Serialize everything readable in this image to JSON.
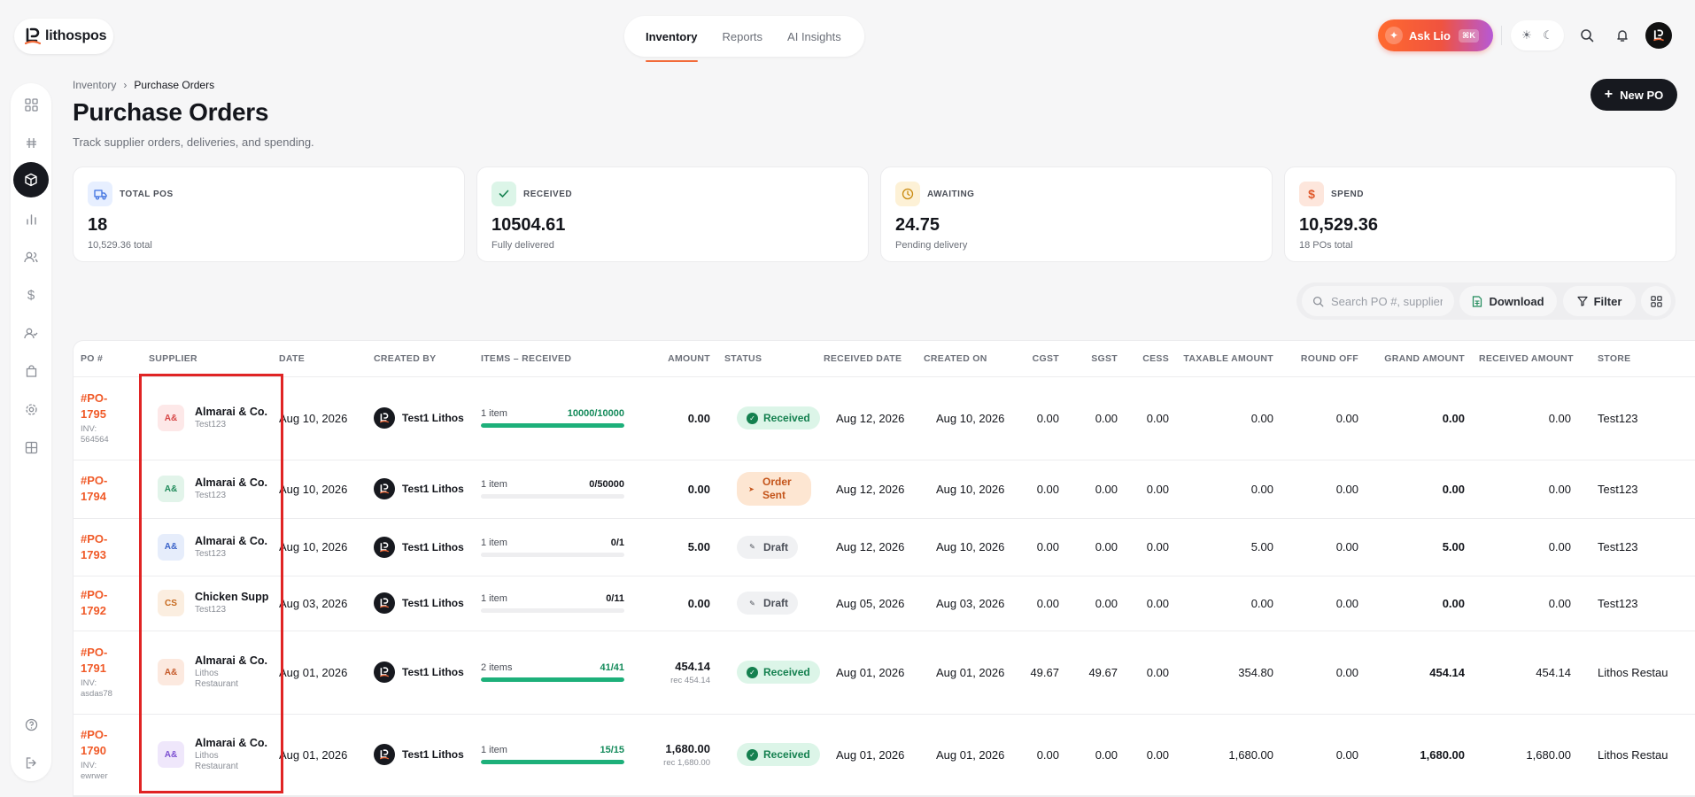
{
  "app": {
    "logo_text": "lithospos"
  },
  "topnav": {
    "tabs": [
      {
        "label": "Inventory",
        "active": true
      },
      {
        "label": "Reports",
        "active": false
      },
      {
        "label": "AI Insights",
        "active": false
      }
    ]
  },
  "topbar": {
    "ask_label": "Ask Lio",
    "ask_shortcut": "⌘K"
  },
  "breadcrumb": {
    "parent": "Inventory",
    "current": "Purchase Orders"
  },
  "page": {
    "title": "Purchase Orders",
    "subtitle": "Track supplier orders, deliveries, and spending.",
    "new_button": "New PO"
  },
  "stats": [
    {
      "label": "TOTAL POS",
      "value": "18",
      "sub": "10,529.36 total",
      "icon": "truck-icon",
      "color": "#3b6fe0",
      "bg": "#e7efff"
    },
    {
      "label": "RECEIVED",
      "value": "10504.61",
      "sub": "Fully delivered",
      "icon": "check-icon",
      "color": "#14804f",
      "bg": "#dcf5e8"
    },
    {
      "label": "AWAITING",
      "value": "24.75",
      "sub": "Pending delivery",
      "icon": "clock-icon",
      "color": "#c98a10",
      "bg": "#fdf1d6"
    },
    {
      "label": "SPEND",
      "value": "10,529.36",
      "sub": "18 POs total",
      "icon": "dollar-icon",
      "color": "#e0582a",
      "bg": "#fde6dc"
    }
  ],
  "toolbar": {
    "search_placeholder": "Search PO #, supplier...",
    "download_label": "Download",
    "filter_label": "Filter"
  },
  "table": {
    "columns": [
      "PO #",
      "SUPPLIER",
      "DATE",
      "CREATED BY",
      "ITEMS – RECEIVED",
      "AMOUNT",
      "STATUS",
      "RECEIVED DATE",
      "CREATED ON",
      "CGST",
      "SGST",
      "CESS",
      "TAXABLE AMOUNT",
      "ROUND OFF",
      "GRAND AMOUNT",
      "RECEIVED AMOUNT",
      "STORE"
    ],
    "rows": [
      {
        "po": "#PO-1795",
        "inv": "INV: 564564",
        "sup_badge": "A&",
        "badge_color": "#d64545",
        "badge_bg": "#fde8e8",
        "supplier": "Almarai & Co.",
        "sup_loc": "Test123",
        "date": "Aug 10, 2026",
        "created_by": "Test1 Lithos",
        "items": "1 item",
        "received": "10000/10000",
        "progress": 1.0,
        "amount": "0.00",
        "amount_sub": "",
        "status": "Received",
        "status_type": "received",
        "received_date": "Aug 12, 2026",
        "created_on": "Aug 10, 2026",
        "cgst": "0.00",
        "sgst": "0.00",
        "cess": "0.00",
        "taxable": "0.00",
        "round_off": "0.00",
        "grand": "0.00",
        "received_amount": "0.00",
        "store": "Test123"
      },
      {
        "po": "#PO-1794",
        "inv": "",
        "sup_badge": "A&",
        "badge_color": "#1f8a5a",
        "badge_bg": "#e2f4ea",
        "supplier": "Almarai & Co.",
        "sup_loc": "Test123",
        "date": "Aug 10, 2026",
        "created_by": "Test1 Lithos",
        "items": "1 item",
        "received": "0/50000",
        "progress": 0,
        "amount": "0.00",
        "amount_sub": "",
        "status": "Order Sent",
        "status_type": "sent",
        "received_date": "Aug 12, 2026",
        "created_on": "Aug 10, 2026",
        "cgst": "0.00",
        "sgst": "0.00",
        "cess": "0.00",
        "taxable": "0.00",
        "round_off": "0.00",
        "grand": "0.00",
        "received_amount": "0.00",
        "store": "Test123"
      },
      {
        "po": "#PO-1793",
        "inv": "",
        "sup_badge": "A&",
        "badge_color": "#3b63c9",
        "badge_bg": "#e6edfb",
        "supplier": "Almarai & Co.",
        "sup_loc": "Test123",
        "date": "Aug 10, 2026",
        "created_by": "Test1 Lithos",
        "items": "1 item",
        "received": "0/1",
        "progress": 0,
        "amount": "5.00",
        "amount_sub": "",
        "status": "Draft",
        "status_type": "draft",
        "received_date": "Aug 12, 2026",
        "created_on": "Aug 10, 2026",
        "cgst": "0.00",
        "sgst": "0.00",
        "cess": "0.00",
        "taxable": "5.00",
        "round_off": "0.00",
        "grand": "5.00",
        "received_amount": "0.00",
        "store": "Test123"
      },
      {
        "po": "#PO-1792",
        "inv": "",
        "sup_badge": "CS",
        "badge_color": "#c76a1e",
        "badge_bg": "#fbeee0",
        "supplier": "Chicken Supp",
        "sup_loc": "Test123",
        "date": "Aug 03, 2026",
        "created_by": "Test1 Lithos",
        "items": "1 item",
        "received": "0/11",
        "progress": 0,
        "amount": "0.00",
        "amount_sub": "",
        "status": "Draft",
        "status_type": "draft",
        "received_date": "Aug 05, 2026",
        "created_on": "Aug 03, 2026",
        "cgst": "0.00",
        "sgst": "0.00",
        "cess": "0.00",
        "taxable": "0.00",
        "round_off": "0.00",
        "grand": "0.00",
        "received_amount": "0.00",
        "store": "Test123"
      },
      {
        "po": "#PO-1791",
        "inv": "INV: asdas78",
        "sup_badge": "A&",
        "badge_color": "#c55a2a",
        "badge_bg": "#fce9df",
        "supplier": "Almarai & Co.",
        "sup_loc": "Lithos Restaurant",
        "date": "Aug 01, 2026",
        "created_by": "Test1 Lithos",
        "items": "2 items",
        "received": "41/41",
        "progress": 1.0,
        "amount": "454.14",
        "amount_sub": "rec 454.14",
        "status": "Received",
        "status_type": "received",
        "received_date": "Aug 01, 2026",
        "created_on": "Aug 01, 2026",
        "cgst": "49.67",
        "sgst": "49.67",
        "cess": "0.00",
        "taxable": "354.80",
        "round_off": "0.00",
        "grand": "454.14",
        "received_amount": "454.14",
        "store": "Lithos Restau"
      },
      {
        "po": "#PO-1790",
        "inv": "INV: ewrwer",
        "sup_badge": "A&",
        "badge_color": "#7b4fd1",
        "badge_bg": "#efe7fb",
        "supplier": "Almarai & Co.",
        "sup_loc": "Lithos Restaurant",
        "date": "Aug 01, 2026",
        "created_by": "Test1 Lithos",
        "items": "1 item",
        "received": "15/15",
        "progress": 1.0,
        "amount": "1,680.00",
        "amount_sub": "rec 1,680.00",
        "status": "Received",
        "status_type": "received",
        "received_date": "Aug 01, 2026",
        "created_on": "Aug 01, 2026",
        "cgst": "0.00",
        "sgst": "0.00",
        "cess": "0.00",
        "taxable": "1,680.00",
        "round_off": "0.00",
        "grand": "1,680.00",
        "received_amount": "1,680.00",
        "store": "Lithos Restau"
      }
    ]
  }
}
